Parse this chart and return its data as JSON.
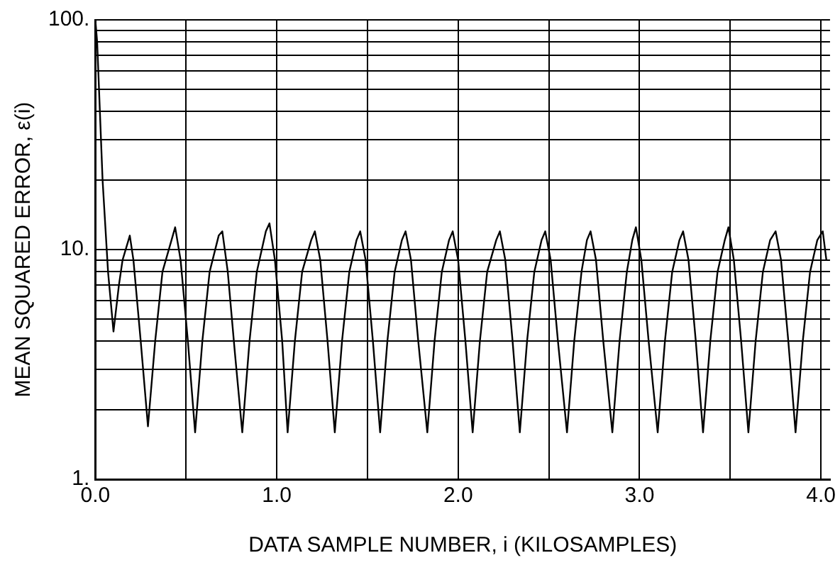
{
  "chart_data": {
    "type": "line",
    "xlabel": "DATA SAMPLE NUMBER, i (KILOSAMPLES)",
    "ylabel": "MEAN SQUARED ERROR, ε(i)",
    "log": "y",
    "grid": true,
    "legend": false,
    "marker": "none",
    "line_style": "solid",
    "xlim": [
      0,
      4.05
    ],
    "ylim": [
      1,
      100
    ],
    "xticks": [
      {
        "value": 0,
        "label": "0.0"
      },
      {
        "value": 0.5,
        "label": null
      },
      {
        "value": 1,
        "label": "1.0"
      },
      {
        "value": 1.5,
        "label": null
      },
      {
        "value": 2,
        "label": "2.0"
      },
      {
        "value": 2.5,
        "label": null
      },
      {
        "value": 3,
        "label": "3.0"
      },
      {
        "value": 3.5,
        "label": null
      },
      {
        "value": 4,
        "label": "4.0"
      }
    ],
    "yticks": [
      {
        "value": 1,
        "label": "1."
      },
      {
        "value": 2,
        "label": null
      },
      {
        "value": 3,
        "label": null
      },
      {
        "value": 4,
        "label": null
      },
      {
        "value": 5,
        "label": null
      },
      {
        "value": 6,
        "label": null
      },
      {
        "value": 7,
        "label": null
      },
      {
        "value": 8,
        "label": null
      },
      {
        "value": 9,
        "label": null
      },
      {
        "value": 10,
        "label": "10."
      },
      {
        "value": 20,
        "label": null
      },
      {
        "value": 30,
        "label": null
      },
      {
        "value": 40,
        "label": null
      },
      {
        "value": 50,
        "label": null
      },
      {
        "value": 60,
        "label": null
      },
      {
        "value": 70,
        "label": null
      },
      {
        "value": 80,
        "label": null
      },
      {
        "value": 90,
        "label": null
      },
      {
        "value": 100,
        "label": "100."
      }
    ],
    "series": [
      {
        "color": "#000000",
        "x": [
          0.0,
          0.01,
          0.04,
          0.07,
          0.1,
          0.13,
          0.15,
          0.19,
          0.21,
          0.25,
          0.29,
          0.33,
          0.37,
          0.42,
          0.44,
          0.47,
          0.51,
          0.55,
          0.59,
          0.63,
          0.68,
          0.7,
          0.73,
          0.77,
          0.81,
          0.85,
          0.89,
          0.94,
          0.96,
          0.99,
          1.03,
          1.06,
          1.1,
          1.14,
          1.19,
          1.21,
          1.24,
          1.28,
          1.32,
          1.36,
          1.4,
          1.44,
          1.46,
          1.49,
          1.53,
          1.57,
          1.61,
          1.65,
          1.69,
          1.71,
          1.74,
          1.78,
          1.83,
          1.87,
          1.91,
          1.95,
          1.97,
          2.0,
          2.04,
          2.08,
          2.12,
          2.16,
          2.21,
          2.23,
          2.26,
          2.3,
          2.34,
          2.38,
          2.42,
          2.46,
          2.48,
          2.51,
          2.55,
          2.6,
          2.64,
          2.68,
          2.71,
          2.73,
          2.76,
          2.8,
          2.85,
          2.89,
          2.93,
          2.96,
          2.98,
          3.01,
          3.05,
          3.1,
          3.14,
          3.18,
          3.22,
          3.24,
          3.27,
          3.31,
          3.35,
          3.39,
          3.43,
          3.47,
          3.49,
          3.52,
          3.56,
          3.6,
          3.64,
          3.68,
          3.72,
          3.75,
          3.78,
          3.82,
          3.86,
          3.9,
          3.94,
          3.98,
          4.01,
          4.03
        ],
        "values": [
          100,
          80,
          20,
          8,
          4.4,
          7,
          9,
          11.5,
          9,
          4,
          1.7,
          4,
          8,
          11,
          12.5,
          9,
          4,
          1.6,
          4,
          8,
          11.5,
          12,
          8,
          3.5,
          1.6,
          4,
          8,
          12,
          13,
          9,
          4,
          1.6,
          4,
          8,
          11,
          12,
          9,
          4,
          1.6,
          4,
          8,
          11,
          12,
          9,
          4,
          1.6,
          4,
          8,
          11,
          12,
          9,
          4,
          1.6,
          4,
          8,
          11,
          12,
          9,
          4,
          1.6,
          4,
          8,
          11,
          12,
          9,
          4,
          1.6,
          4,
          8,
          11,
          12,
          9,
          4,
          1.6,
          4,
          8,
          11,
          12,
          9,
          4,
          1.6,
          4,
          8,
          11,
          12.5,
          9,
          4,
          1.6,
          4,
          8,
          11,
          12,
          9,
          4,
          1.6,
          4,
          8,
          11,
          12.5,
          9,
          4,
          1.6,
          4,
          8,
          11,
          12,
          9,
          4,
          1.6,
          4,
          8,
          11,
          12,
          9
        ]
      }
    ]
  }
}
